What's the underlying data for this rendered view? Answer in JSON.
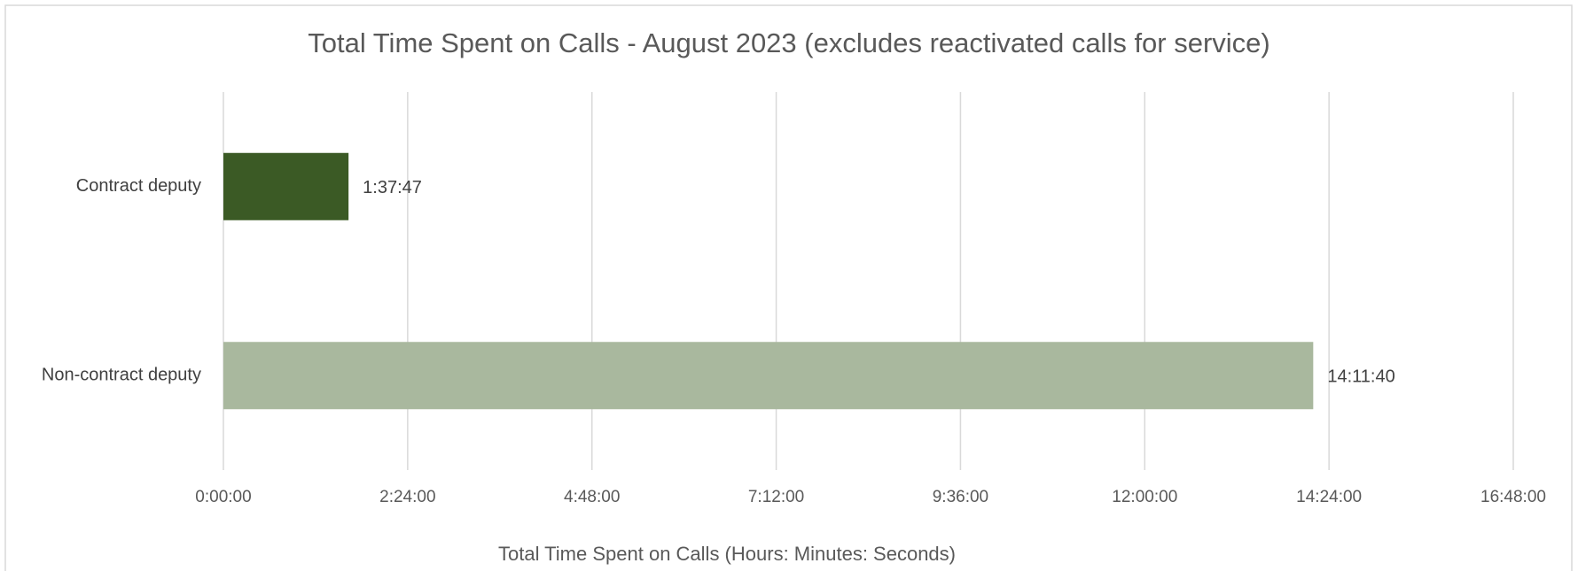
{
  "chart_data": {
    "type": "hbar",
    "title": "Total Time Spent on Calls - August 2023 (excludes reactivated calls for service)",
    "x_label": "Total Time Spent on Calls (Hours: Minutes: Seconds)",
    "categories": [
      "Contract deputy",
      "Non-contract deputy"
    ],
    "values": [
      1.6297,
      14.1944
    ],
    "value_labels": [
      "1:37:47",
      "14:11:40"
    ],
    "colors": [
      "#3b5a25",
      "#a9b89e"
    ],
    "xlim": [
      0,
      16.8
    ],
    "xticks": [
      {
        "value": 0,
        "label": "0:00:00"
      },
      {
        "value": 2.4,
        "label": "2:24:00"
      },
      {
        "value": 4.8,
        "label": "4:48:00"
      },
      {
        "value": 7.2,
        "label": "7:12:00"
      },
      {
        "value": 9.6,
        "label": "9:36:00"
      },
      {
        "value": 12,
        "label": "12:00:00"
      },
      {
        "value": 14.4,
        "label": "14:24:00"
      },
      {
        "value": 16.8,
        "label": "16:48:00"
      }
    ],
    "grid": true
  }
}
